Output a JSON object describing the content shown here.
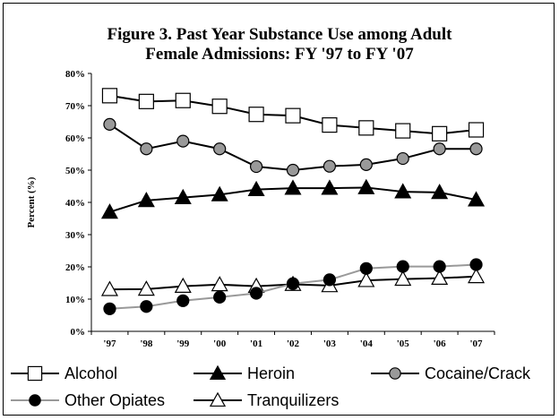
{
  "chart_data": {
    "type": "line",
    "title_line1": "Figure 3. Past Year Substance Use among Adult",
    "title_line2": "Female Admissions: FY '97 to FY '07",
    "ylabel": "Percent (%)",
    "xlabel": "",
    "ylim": [
      0,
      80
    ],
    "yticks": [
      "0%",
      "10%",
      "20%",
      "30%",
      "40%",
      "50%",
      "60%",
      "70%",
      "80%"
    ],
    "categories": [
      "'97",
      "'98",
      "'99",
      "'00",
      "'01",
      "'02",
      "'03",
      "'04",
      "'05",
      "'06",
      "'07"
    ],
    "grid": false,
    "legend_position": "bottom",
    "series": [
      {
        "name": "Alcohol",
        "marker": "square",
        "line_color": "#000000",
        "fill": "#ffffff",
        "values": [
          73.1,
          71.3,
          71.6,
          69.8,
          67.3,
          66.9,
          64.0,
          63.1,
          62.2,
          61.3,
          62.5
        ]
      },
      {
        "name": "Heroin",
        "marker": "triangle",
        "line_color": "#000000",
        "fill": "#000000",
        "values": [
          37.0,
          40.6,
          41.5,
          42.4,
          44.0,
          44.4,
          44.4,
          44.6,
          43.3,
          43.1,
          40.8
        ]
      },
      {
        "name": "Cocaine/Crack",
        "marker": "circle",
        "line_color": "#000000",
        "fill": "#999999",
        "values": [
          64.2,
          56.6,
          59.0,
          56.6,
          51.1,
          50.0,
          51.2,
          51.7,
          53.6,
          56.6,
          56.6
        ]
      },
      {
        "name": "Other Opiates",
        "marker": "circle",
        "line_color": "#999999",
        "fill": "#000000",
        "values": [
          7.0,
          7.7,
          9.5,
          10.6,
          11.8,
          14.8,
          16.0,
          19.5,
          20.1,
          20.1,
          20.7
        ]
      },
      {
        "name": "Tranquilizers",
        "marker": "triangle",
        "line_color": "#000000",
        "fill": "#ffffff",
        "values": [
          13.0,
          13.1,
          14.0,
          14.5,
          14.0,
          14.6,
          14.2,
          15.8,
          16.2,
          16.5,
          17.0
        ]
      }
    ]
  }
}
